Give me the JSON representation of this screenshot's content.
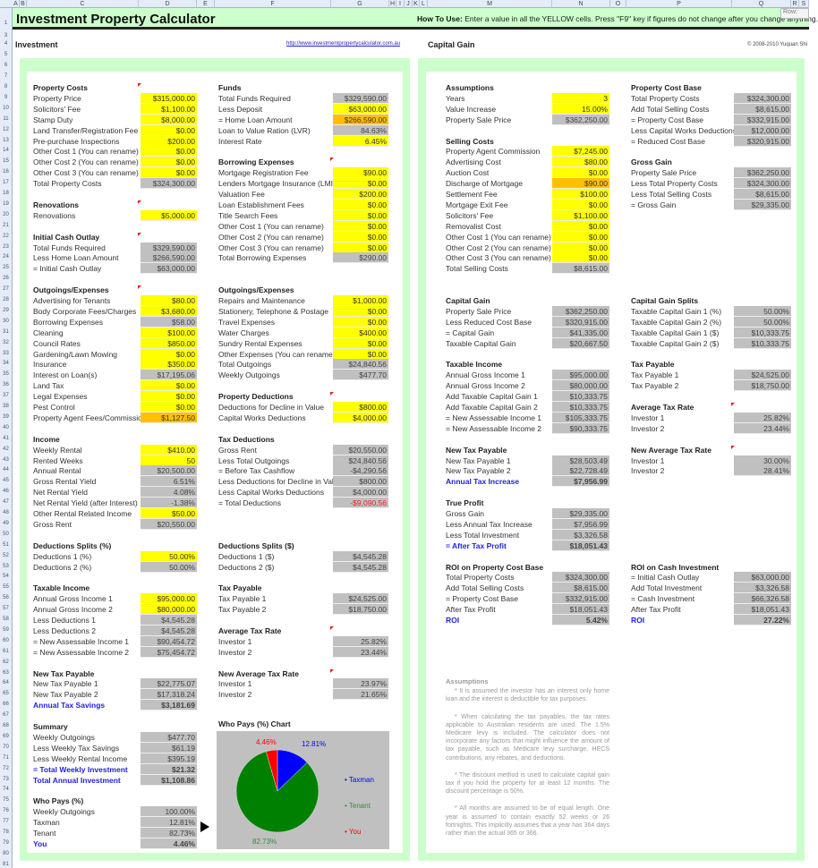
{
  "sheet": {
    "columns": [
      "A",
      "B",
      "C",
      "D",
      "E",
      "F",
      "G",
      "H",
      "I",
      "J",
      "K",
      "L",
      "M",
      "N",
      "O",
      "P",
      "Q",
      "R",
      "S"
    ],
    "first_row": 1,
    "last_row": 81,
    "hidden_row": 2,
    "tooltip": "Row:"
  },
  "header": {
    "title": "Investment Property Calculator",
    "howto_label": "How To Use:",
    "howto_text": " Enter a value in all the YELLOW cells. Press \"F9\" key if figures do not change after you change anything."
  },
  "investment": {
    "heading": "Investment",
    "link": "http://www.investmentpropertycalculator.com.au"
  },
  "capital_gain_panel": {
    "heading": "Capital Gain",
    "copyright": "© 2008-2010 Yuquan Shi"
  },
  "colors": {
    "yellow": "#ffff00",
    "gray": "#c0c0c0",
    "orange": "#ffc000",
    "green_panel": "#ccffcc",
    "blue_text": "#2222dd",
    "red_text": "#ee2222"
  },
  "sections": {
    "property_costs": {
      "title": "Property Costs",
      "rows": [
        [
          "Property Price",
          "$315,000.00",
          "y"
        ],
        [
          "Solicitors' Fee",
          "$1,100.00",
          "y"
        ],
        [
          "Stamp Duty",
          "$8,000.00",
          "y"
        ],
        [
          "Land Transfer/Registration Fee",
          "$0.00",
          "y"
        ],
        [
          "Pre-purchase Inspections",
          "$200.00",
          "y"
        ],
        [
          "Other Cost 1 (You can rename)",
          "$0.00",
          "y"
        ],
        [
          "Other Cost 2 (You can rename)",
          "$0.00",
          "y"
        ],
        [
          "Other Cost 3 (You can rename)",
          "$0.00",
          "y"
        ],
        [
          "Total Property Costs",
          "$324,300.00",
          "g"
        ]
      ]
    },
    "renovations": {
      "title": "Renovations",
      "rows": [
        [
          "Renovations",
          "$5,000.00",
          "y"
        ]
      ]
    },
    "initial_cash_outlay": {
      "title": "Initial Cash Outlay",
      "rows": [
        [
          "Total Funds Required",
          "$329,590.00",
          "g"
        ],
        [
          "Less Home Loan Amount",
          "$266,590.00",
          "g"
        ],
        [
          "= Initial Cash Outlay",
          "$63,000.00",
          "g"
        ]
      ]
    },
    "outgoings_left": {
      "title": "Outgoings/Expenses",
      "rows": [
        [
          "Advertising for Tenants",
          "$80.00",
          "y"
        ],
        [
          "Body Corporate Fees/Charges",
          "$3,680.00",
          "y"
        ],
        [
          "Borrowing Expenses",
          "$58.00",
          "g"
        ],
        [
          "Cleaning",
          "$100.00",
          "y"
        ],
        [
          "Council Rates",
          "$850.00",
          "y"
        ],
        [
          "Gardening/Lawn Mowing",
          "$0.00",
          "y"
        ],
        [
          "Insurance",
          "$350.00",
          "y"
        ],
        [
          "Interest on Loan(s)",
          "$17,195.06",
          "g"
        ],
        [
          "Land Tax",
          "$0.00",
          "y"
        ],
        [
          "Legal Expenses",
          "$0.00",
          "y"
        ],
        [
          "Pest Control",
          "$0.00",
          "y"
        ],
        [
          "Property Agent Fees/Commission",
          "$1,127.50",
          "o"
        ]
      ]
    },
    "income": {
      "title": "Income",
      "rows": [
        [
          "Weekly Rental",
          "$410.00",
          "y"
        ],
        [
          "Rented Weeks",
          "50",
          "y"
        ],
        [
          "Annual Rental",
          "$20,500.00",
          "g"
        ],
        [
          "Gross Rental Yield",
          "6.51%",
          "g"
        ],
        [
          "Net Rental Yield",
          "4.08%",
          "g"
        ],
        [
          "Net Rental Yield (after Interest)",
          "-1.38%",
          "g"
        ],
        [
          "Other Rental Related Income",
          "$50.00",
          "y"
        ],
        [
          "Gross Rent",
          "$20,550.00",
          "g"
        ]
      ]
    },
    "deductions_splits_pct": {
      "title": "Deductions Splits (%)",
      "rows": [
        [
          "Deductions 1 (%)",
          "50.00%",
          "y"
        ],
        [
          "Deductions 2 (%)",
          "50.00%",
          "g"
        ]
      ]
    },
    "taxable_income": {
      "title": "Taxable Income",
      "rows": [
        [
          "Annual Gross Income 1",
          "$95,000.00",
          "y"
        ],
        [
          "Annual Gross Income 2",
          "$80,000.00",
          "y"
        ],
        [
          "Less Deductions 1",
          "$4,545.28",
          "g"
        ],
        [
          "Less Deductions 2",
          "$4,545.28",
          "g"
        ],
        [
          "= New Assessable Income 1",
          "$90,454.72",
          "g"
        ],
        [
          "= New Assessable Income 2",
          "$75,454.72",
          "g"
        ]
      ]
    },
    "new_tax_payable": {
      "title": "New Tax Payable",
      "rows": [
        [
          "New Tax Payable 1",
          "$22,775.07",
          "g"
        ],
        [
          "New Tax Payable 2",
          "$17,318.24",
          "g"
        ],
        [
          "Annual Tax Savings",
          "$3,181.69",
          "g",
          "blue"
        ]
      ]
    },
    "summary": {
      "title": "Summary",
      "rows": [
        [
          "Weekly Outgoings",
          "$477.70",
          "g"
        ],
        [
          "Less Weekly Tax Savings",
          "$61.19",
          "g"
        ],
        [
          "Less Weekly Rental Income",
          "$395.19",
          "g"
        ],
        [
          "= Total Weekly Investment",
          "$21.32",
          "g",
          "blue"
        ],
        [
          "Total Annual Investment",
          "$1,108.86",
          "g",
          "blue"
        ]
      ]
    },
    "who_pays": {
      "title": "Who Pays (%)",
      "rows": [
        [
          "Weekly Outgoings",
          "100.00%",
          "g"
        ],
        [
          "Taxman",
          "12.81%",
          "g"
        ],
        [
          "Tenant",
          "82.73%",
          "g"
        ],
        [
          "You",
          "4.46%",
          "g",
          "blue"
        ]
      ]
    },
    "funds": {
      "title": "Funds",
      "rows": [
        [
          "Total Funds Required",
          "$329,590.00",
          "g"
        ],
        [
          "Less Deposit",
          "$63,000.00",
          "y"
        ],
        [
          "= Home Loan Amount",
          "$266,590.00",
          "o"
        ],
        [
          "Loan to Value Ration (LVR)",
          "84.63%",
          "g"
        ],
        [
          "Interest Rate",
          "6.45%",
          "y"
        ]
      ]
    },
    "borrowing": {
      "title": "Borrowing Expenses",
      "rows": [
        [
          "Mortgage Registration Fee",
          "$90.00",
          "y"
        ],
        [
          "Lenders Mortgage Insurance (LMI)",
          "$0.00",
          "y"
        ],
        [
          "Valuation Fee",
          "$200.00",
          "y"
        ],
        [
          "Loan Establishment Fees",
          "$0.00",
          "y"
        ],
        [
          "Title Search Fees",
          "$0.00",
          "y"
        ],
        [
          "Other Cost 1 (You can rename)",
          "$0.00",
          "y"
        ],
        [
          "Other Cost 2 (You can rename)",
          "$0.00",
          "y"
        ],
        [
          "Other Cost 3 (You can rename)",
          "$0.00",
          "y"
        ],
        [
          "Total Borrowing Expenses",
          "$290.00",
          "g"
        ]
      ]
    },
    "outgoings_right": {
      "title": "Outgoings/Expenses",
      "rows": [
        [
          "Repairs and Maintenance",
          "$1,000.00",
          "y"
        ],
        [
          "Stationery, Telephone & Postage",
          "$0.00",
          "y"
        ],
        [
          "Travel Expenses",
          "$0.00",
          "y"
        ],
        [
          "Water Charges",
          "$400.00",
          "y"
        ],
        [
          "Sundry Rental Expenses",
          "$0.00",
          "y"
        ],
        [
          "Other Expenses (You can rename)",
          "$0.00",
          "y"
        ],
        [
          "Total Outgoings",
          "$24,840.56",
          "g"
        ],
        [
          "Weekly Outgoings",
          "$477.70",
          "g"
        ]
      ]
    },
    "property_deductions": {
      "title": "Property Deductions",
      "rows": [
        [
          "Deductions for Decline in Value",
          "$800.00",
          "y"
        ],
        [
          "Capital Works Deductions",
          "$4,000.00",
          "y"
        ]
      ]
    },
    "tax_deductions": {
      "title": "Tax Deductions",
      "rows": [
        [
          "Gross Rent",
          "$20,550.00",
          "g"
        ],
        [
          "Less Total Outgoings",
          "$24,840.56",
          "g"
        ],
        [
          "= Before Tax Cashflow",
          "-$4,290.56",
          "g"
        ],
        [
          "Less Deductions for Decline in Value",
          "$800.00",
          "g"
        ],
        [
          "Less Capital Works Deductions",
          "$4,000.00",
          "g"
        ],
        [
          "= Total Deductions",
          "-$9,090.56",
          "g",
          "red"
        ]
      ]
    },
    "deductions_splits_dollar": {
      "title": "Deductions Splits ($)",
      "rows": [
        [
          "Deductions 1 ($)",
          "$4,545.28",
          "g"
        ],
        [
          "Deductions 2 ($)",
          "$4,545.28",
          "g"
        ]
      ]
    },
    "tax_payable": {
      "title": "Tax Payable",
      "rows": [
        [
          "Tax Payable 1",
          "$24,525.00",
          "g"
        ],
        [
          "Tax Payable 2",
          "$18,750.00",
          "g"
        ]
      ]
    },
    "avg_tax_rate": {
      "title": "Average Tax Rate",
      "rows": [
        [
          "Investor 1",
          "25.82%",
          "g"
        ],
        [
          "Investor 2",
          "23.44%",
          "g"
        ]
      ]
    },
    "new_avg_tax_rate": {
      "title": "New Average Tax Rate",
      "rows": [
        [
          "Investor 1",
          "23.97%",
          "g"
        ],
        [
          "Investor 2",
          "21.65%",
          "g"
        ]
      ]
    },
    "assumptions": {
      "title": "Assumptions",
      "rows": [
        [
          "Years",
          "3",
          "y"
        ],
        [
          "Value Increase",
          "15.00%",
          "y"
        ],
        [
          "Property Sale Price",
          "$362,250.00",
          "g"
        ]
      ]
    },
    "selling_costs": {
      "title": "Selling Costs",
      "rows": [
        [
          "Property Agent Commission",
          "$7,245.00",
          "y"
        ],
        [
          "Advertising Cost",
          "$80.00",
          "y"
        ],
        [
          "Auction Cost",
          "$0.00",
          "y"
        ],
        [
          "Discharge of Mortgage",
          "$90.00",
          "o"
        ],
        [
          "Settlement Fee",
          "$100.00",
          "y"
        ],
        [
          "Mortgage Exit Fee",
          "$0.00",
          "y"
        ],
        [
          "Solicitors' Fee",
          "$1,100.00",
          "y"
        ],
        [
          "Removalist Cost",
          "$0.00",
          "y"
        ],
        [
          "Other Cost 1 (You can rename)",
          "$0.00",
          "y"
        ],
        [
          "Other Cost 2 (You can rename)",
          "$0.00",
          "y"
        ],
        [
          "Other Cost 3 (You can rename)",
          "$0.00",
          "y"
        ],
        [
          "Total Selling Costs",
          "$8,615.00",
          "g"
        ]
      ]
    },
    "capital_gain": {
      "title": "Capital Gain",
      "rows": [
        [
          "Property Sale Price",
          "$362,250.00",
          "g"
        ],
        [
          "Less Reduced Cost Base",
          "$320,915.00",
          "g"
        ],
        [
          "= Capital Gain",
          "$41,335.00",
          "g"
        ],
        [
          "Taxable Capital Gain",
          "$20,667.50",
          "g"
        ]
      ]
    },
    "taxable_income_cg": {
      "title": "Taxable Income",
      "rows": [
        [
          "Annual Gross Income 1",
          "$95,000.00",
          "g"
        ],
        [
          "Annual Gross Income 2",
          "$80,000.00",
          "g"
        ],
        [
          "Add Taxable Capital Gain 1",
          "$10,333.75",
          "g"
        ],
        [
          "Add Taxable Capital Gain 2",
          "$10,333.75",
          "g"
        ],
        [
          "= New Assessable Income 1",
          "$105,333.75",
          "g"
        ],
        [
          "= New Assessable Income 2",
          "$90,333.75",
          "g"
        ]
      ]
    },
    "new_tax_payable_cg": {
      "title": "New Tax Payable",
      "rows": [
        [
          "New Tax Payable 1",
          "$28,503.49",
          "g"
        ],
        [
          "New Tax Payable 2",
          "$22,728.49",
          "g"
        ],
        [
          "Annual Tax Increase",
          "$7,956.99",
          "g",
          "blue"
        ]
      ]
    },
    "true_profit": {
      "title": "True Profit",
      "rows": [
        [
          "Gross Gain",
          "$29,335.00",
          "g"
        ],
        [
          "Less Annual Tax Increase",
          "$7,956.99",
          "g"
        ],
        [
          "Less Total Investment",
          "$3,326.58",
          "g"
        ],
        [
          "= After Tax Profit",
          "$18,051.43",
          "g",
          "blue"
        ]
      ]
    },
    "roi_cost_base": {
      "title": "ROI on Property Cost Base",
      "rows": [
        [
          "Total Property Costs",
          "$324,300.00",
          "g"
        ],
        [
          "Add Total Selling Costs",
          "$8,615.00",
          "g"
        ],
        [
          "= Property Cost Base",
          "$332,915.00",
          "g"
        ],
        [
          "After Tax Profit",
          "$18,051.43",
          "g"
        ],
        [
          "ROI",
          "5.42%",
          "g",
          "blue"
        ]
      ]
    },
    "property_cost_base": {
      "title": "Property Cost Base",
      "rows": [
        [
          "Total Property Costs",
          "$324,300.00",
          "g"
        ],
        [
          "Add Total Selling Costs",
          "$8,615.00",
          "g"
        ],
        [
          "= Property Cost Base",
          "$332,915.00",
          "g"
        ],
        [
          "Less Capital Works Deductions",
          "$12,000.00",
          "g"
        ],
        [
          "= Reduced Cost Base",
          "$320,915.00",
          "g"
        ]
      ]
    },
    "gross_gain": {
      "title": "Gross Gain",
      "rows": [
        [
          "Property Sale Price",
          "$362,250.00",
          "g"
        ],
        [
          "Less Total Property Costs",
          "$324,300.00",
          "g"
        ],
        [
          "Less Total Selling Costs",
          "$8,615.00",
          "g"
        ],
        [
          "= Gross Gain",
          "$29,335.00",
          "g"
        ]
      ]
    },
    "capital_gain_splits": {
      "title": "Capital Gain Splits",
      "rows": [
        [
          "Taxable Capital Gain 1 (%)",
          "50.00%",
          "g"
        ],
        [
          "Taxable Capital Gain 2 (%)",
          "50.00%",
          "g"
        ],
        [
          "Taxable Capital Gain 1 ($)",
          "$10,333.75",
          "g"
        ],
        [
          "Taxable Capital Gain 2 ($)",
          "$10,333.75",
          "g"
        ]
      ]
    },
    "tax_payable_cg": {
      "title": "Tax Payable",
      "rows": [
        [
          "Tax Payable 1",
          "$24,525.00",
          "g"
        ],
        [
          "Tax Payable 2",
          "$18,750.00",
          "g"
        ]
      ]
    },
    "avg_tax_rate_cg": {
      "title": "Average Tax Rate",
      "rows": [
        [
          "Investor 1",
          "25.82%",
          "g"
        ],
        [
          "Investor 2",
          "23.44%",
          "g"
        ]
      ]
    },
    "new_avg_tax_rate_cg": {
      "title": "New Average Tax Rate",
      "rows": [
        [
          "Investor 1",
          "30.00%",
          "g"
        ],
        [
          "Investor 2",
          "28.41%",
          "g"
        ]
      ]
    },
    "roi_cash": {
      "title": "ROI on Cash Investment",
      "rows": [
        [
          "= Initial Cash Outlay",
          "$63,000.00",
          "g"
        ],
        [
          "Add Total Investment",
          "$3,326.58",
          "g"
        ],
        [
          "= Cash Investment",
          "$66,326.58",
          "g"
        ],
        [
          "After Tax Profit",
          "$18,051.43",
          "g"
        ],
        [
          "ROI",
          "27.22%",
          "g",
          "blue"
        ]
      ]
    }
  },
  "notes": {
    "title": "Assumptions",
    "paragraphs": [
      "* It is assumed the investor has an interest only home loan and the interest is deductible for tax purposes.",
      "* When calculating the tax payables, the tax rates applicable to Australian residents are used. The 1.5% Medicare levy is included. The calculator does not incorporate any factors that might influence the amount of tax payable, such as Medicare levy surcharge, HECS contributions, any rebates, and deductions.",
      "* The discount method is used to calculate capital gain tax if you hold the property for at least 12 months. The discount percentage is 50%.",
      "* All months are assumed to be of equal length. One year is assumed to contain exactly 52 weeks or 26 fortnights. This implicitly assumes that a year has 364 days rather than the actual 365 or 366."
    ]
  },
  "chart_data": {
    "type": "pie",
    "title": "Who Pays (%) Chart",
    "slices": [
      {
        "name": "Taxman",
        "value": 12.81,
        "label": "12.81%",
        "color": "#0000ff"
      },
      {
        "name": "Tenant",
        "value": 82.73,
        "label": "82.73%",
        "color": "#008000"
      },
      {
        "name": "You",
        "value": 4.46,
        "label": "4.46%",
        "color": "#ff0000"
      }
    ],
    "legend": "right"
  }
}
